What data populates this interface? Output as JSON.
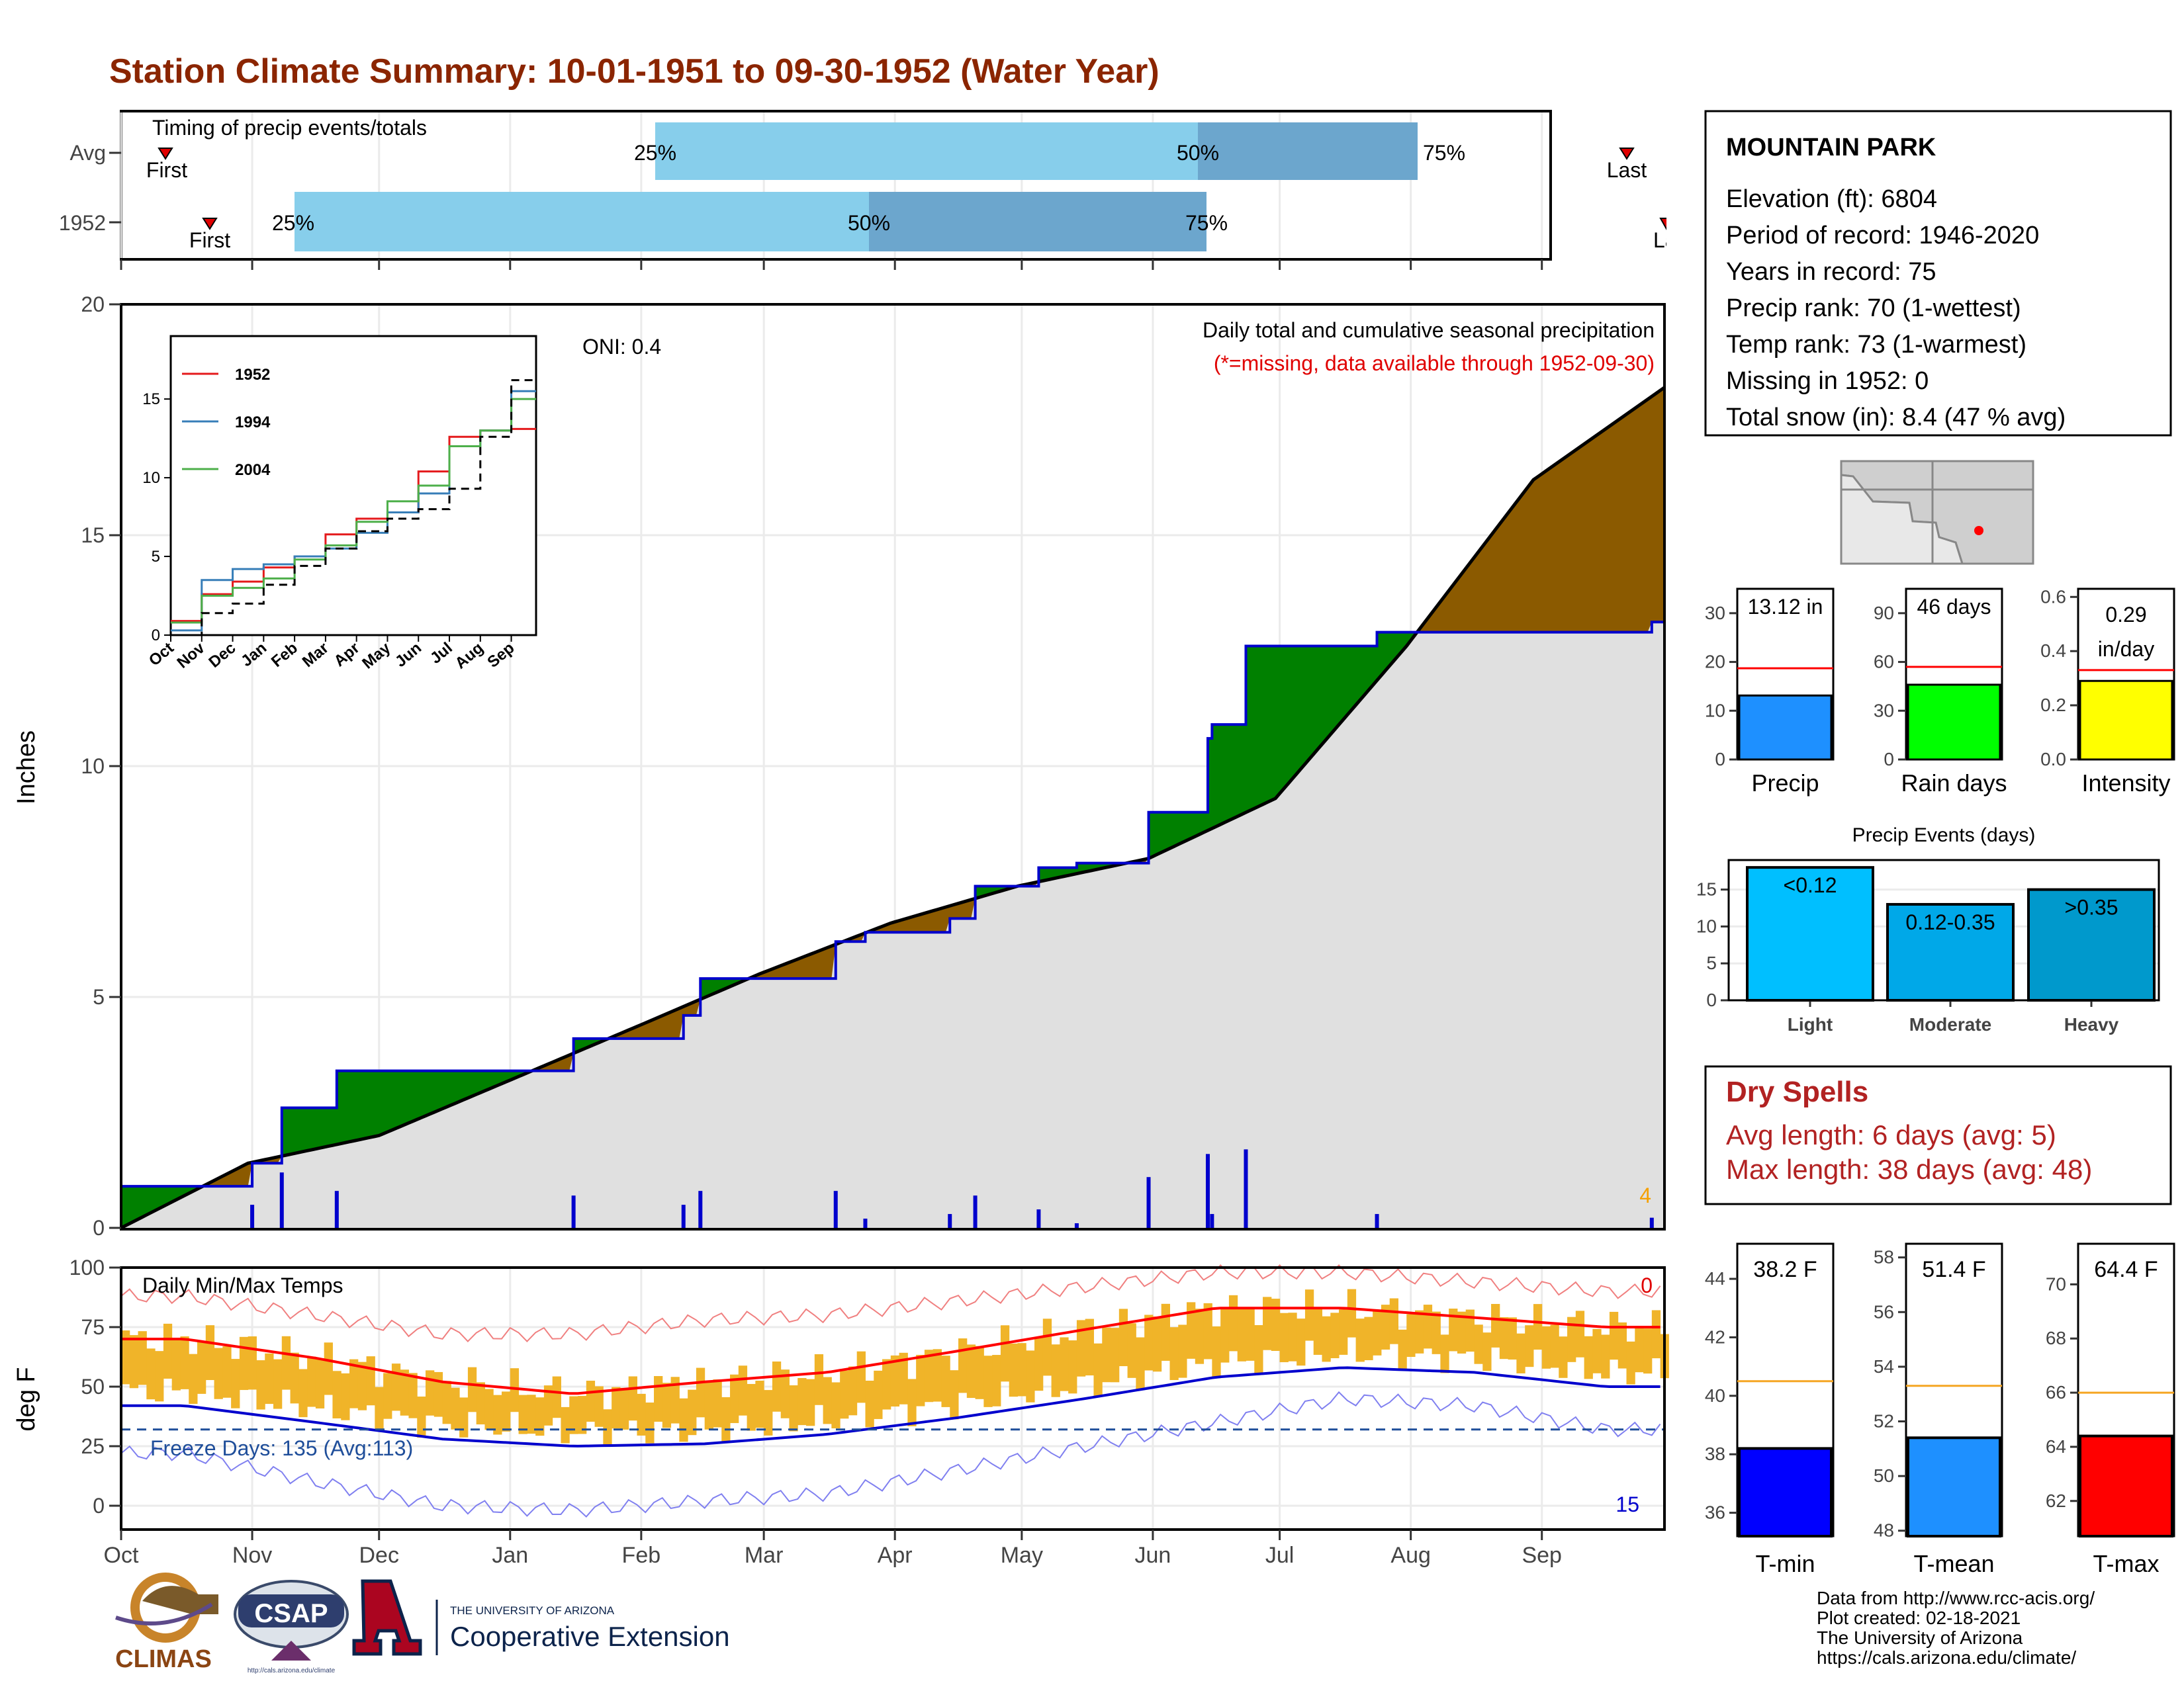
{
  "title": "Station Climate Summary: 10-01-1951 to 09-30-1952 (Water Year)",
  "colors": {
    "title": "#8B2500",
    "bar_light": "#87CEEB",
    "bar_dark": "#6CA6CD",
    "brown": "#8B5A00",
    "green": "#008000",
    "blue_line": "#0000CD",
    "gray_fill": "#E0E0E0",
    "temp_bar": "#F0B429",
    "red": "#FF0000",
    "dry_red": "#B22222"
  },
  "timing_panel": {
    "label": "Timing of precip events/totals",
    "rows": [
      {
        "name": "Avg",
        "first": "First",
        "last": "Last",
        "p25": "25%",
        "p50": "50%",
        "p75": "75%"
      },
      {
        "name": "1952",
        "first": "First",
        "last": "Last",
        "p25": "25%",
        "p50": "50%",
        "p75": "75%"
      }
    ]
  },
  "station": {
    "name": "MOUNTAIN PARK",
    "lines": [
      "Elevation (ft): 6804",
      "Period of record: 1946-2020",
      "Years in record: 75",
      "Precip rank: 70 (1-wettest)",
      "Temp rank: 73 (1-warmest)",
      "Missing in 1952: 0",
      "Total snow (in): 8.4 (47 % avg)"
    ]
  },
  "precip_panel": {
    "ylabel": "Inches",
    "yticks": [
      "0",
      "5",
      "10",
      "15",
      "20"
    ],
    "oni": "ONI: 0.4",
    "caption": "Daily total and cumulative seasonal precipitation",
    "missing_note": "(*=missing, data available through 1952-09-30)",
    "corner_count": "4"
  },
  "inset": {
    "yticks": [
      "0",
      "5",
      "10",
      "15"
    ],
    "xticks": [
      "Oct",
      "Nov",
      "Dec",
      "Jan",
      "Feb",
      "Mar",
      "Apr",
      "May",
      "Jun",
      "Jul",
      "Aug",
      "Sep"
    ],
    "legend": [
      "1952",
      "1994",
      "2004"
    ]
  },
  "months": [
    "Oct",
    "Nov",
    "Dec",
    "Jan",
    "Feb",
    "Mar",
    "Apr",
    "May",
    "Jun",
    "Jul",
    "Aug",
    "Sep"
  ],
  "temp_panel": {
    "ylabel": "deg F",
    "label": "Daily Min/Max Temps",
    "yticks": [
      "0",
      "25",
      "50",
      "75",
      "100"
    ],
    "freeze": "Freeze Days: 135 (Avg:113)",
    "count_top": "0",
    "count_bottom": "15"
  },
  "summary_bars": {
    "precip": {
      "label": "Precip",
      "value_text": "13.12 in",
      "yticks": [
        "0",
        "10",
        "20",
        "30"
      ]
    },
    "rain_days": {
      "label": "Rain days",
      "value_text": "46 days",
      "yticks": [
        "0",
        "30",
        "60",
        "90"
      ]
    },
    "intensity": {
      "label": "Intensity",
      "value_text_1": "0.29",
      "value_text_2": "in/day",
      "yticks": [
        "0.0",
        "0.2",
        "0.4",
        "0.6"
      ]
    }
  },
  "events": {
    "title": "Precip Events (days)",
    "yticks": [
      "0",
      "5",
      "10",
      "15"
    ],
    "bars": [
      {
        "label": "Light",
        "text": "<0.12"
      },
      {
        "label": "Moderate",
        "text": "0.12-0.35"
      },
      {
        "label": "Heavy",
        "text": ">0.35"
      }
    ]
  },
  "dry_spells": {
    "title": "Dry Spells",
    "line1": "Avg length: 6 days (avg: 5)",
    "line2": "Max length: 38 days (avg: 48)"
  },
  "temp_bars": {
    "tmin": {
      "label": "T-min",
      "value_text": "38.2 F",
      "yticks": [
        "36",
        "38",
        "40",
        "42",
        "44"
      ]
    },
    "tmean": {
      "label": "T-mean",
      "value_text": "51.4 F",
      "yticks": [
        "48",
        "50",
        "52",
        "54",
        "56",
        "58"
      ]
    },
    "tmax": {
      "label": "T-max",
      "value_text": "64.4 F",
      "yticks": [
        "62",
        "64",
        "66",
        "68",
        "70"
      ]
    }
  },
  "footer": {
    "lines": [
      "Data from http://www.rcc-acis.org/",
      "Plot created: 02-18-2021",
      "The University of Arizona",
      "https://cals.arizona.edu/climate/"
    ],
    "climas": "CLIMAS",
    "csap": "CSAP",
    "csap_url": "http://cals.arizona.edu/climate",
    "ua_small": "THE UNIVERSITY OF ARIZONA",
    "ua_big": "Cooperative Extension"
  },
  "chart_data": [
    {
      "type": "area",
      "id": "cumulative_precip",
      "xlabel": "",
      "ylabel": "Inches",
      "ylim": [
        0,
        20
      ],
      "x_range": [
        "1951-10-01",
        "1952-09-30"
      ],
      "series": [
        {
          "name": "1952",
          "x_day": [
            0,
            31,
            38,
            51,
            86,
            107,
            133,
            137,
            169,
            176,
            196,
            202,
            217,
            222,
            226,
            243,
            244,
            257,
            258,
            266,
            297,
            362,
            365
          ],
          "values": [
            0.9,
            1.4,
            2.6,
            3.4,
            3.4,
            4.1,
            4.6,
            5.4,
            6.2,
            6.4,
            6.7,
            7.4,
            7.8,
            7.8,
            7.9,
            9.0,
            9.0,
            10.6,
            10.9,
            12.6,
            12.9,
            13.12,
            13.12
          ]
        },
        {
          "name": "Average",
          "x_day": [
            0,
            30,
            61,
            92,
            123,
            151,
            182,
            212,
            243,
            273,
            304,
            334,
            365
          ],
          "values": [
            0.0,
            1.4,
            2.0,
            3.2,
            4.4,
            5.5,
            6.6,
            7.4,
            8.0,
            9.3,
            12.6,
            16.2,
            18.2
          ]
        }
      ]
    },
    {
      "type": "line",
      "id": "inset_cumulative",
      "ylim": [
        0,
        19
      ],
      "categories": [
        "Oct",
        "Nov",
        "Dec",
        "Jan",
        "Feb",
        "Mar",
        "Apr",
        "May",
        "Jun",
        "Jul",
        "Aug",
        "Sep"
      ],
      "series": [
        {
          "name": "1952",
          "values": [
            0.9,
            2.6,
            3.4,
            4.3,
            5.0,
            6.4,
            7.4,
            7.8,
            10.4,
            12.6,
            13.0,
            13.1
          ]
        },
        {
          "name": "1994",
          "values": [
            0.3,
            3.5,
            4.2,
            4.5,
            5.0,
            5.5,
            6.5,
            7.8,
            9.0,
            12.0,
            13.0,
            15.5
          ]
        },
        {
          "name": "2004",
          "values": [
            0.8,
            2.5,
            3.0,
            3.6,
            4.8,
            5.7,
            7.2,
            8.5,
            9.5,
            12.0,
            13.0,
            15.0
          ]
        },
        {
          "name": "Average",
          "values": [
            0.0,
            1.4,
            2.0,
            3.2,
            4.4,
            5.5,
            6.6,
            7.4,
            8.0,
            9.3,
            12.6,
            16.2
          ]
        }
      ]
    },
    {
      "type": "line",
      "id": "daily_temps",
      "ylabel": "deg F",
      "ylim": [
        -10,
        100
      ],
      "categories": [
        "Oct",
        "Nov",
        "Dec",
        "Jan",
        "Feb",
        "Mar",
        "Apr",
        "May",
        "Jun",
        "Jul",
        "Aug",
        "Sep"
      ],
      "series": [
        {
          "name": "Avg max",
          "values": [
            70,
            62,
            52,
            47,
            52,
            56,
            65,
            74,
            83,
            83,
            79,
            75
          ]
        },
        {
          "name": "Avg min",
          "values": [
            42,
            35,
            28,
            25,
            26,
            30,
            37,
            45,
            54,
            58,
            56,
            50
          ]
        },
        {
          "name": "Record high",
          "values": [
            88,
            80,
            72,
            72,
            78,
            80,
            86,
            92,
            98,
            98,
            94,
            90
          ]
        },
        {
          "name": "Record low",
          "values": [
            22,
            10,
            0,
            -2,
            2,
            5,
            15,
            25,
            35,
            45,
            42,
            32
          ]
        }
      ]
    },
    {
      "type": "bar",
      "id": "precip_summary",
      "categories": [
        "Precip",
        "Rain days",
        "Intensity"
      ],
      "values": [
        13.12,
        46,
        0.29
      ],
      "averages": [
        18.7,
        57,
        0.33
      ],
      "ylims": [
        [
          0,
          35
        ],
        [
          0,
          105
        ],
        [
          0,
          0.63
        ]
      ]
    },
    {
      "type": "bar",
      "id": "precip_events",
      "title": "Precip Events (days)",
      "categories": [
        "Light",
        "Moderate",
        "Heavy"
      ],
      "values": [
        18,
        13,
        15
      ],
      "ylim": [
        0,
        19
      ]
    },
    {
      "type": "bar",
      "id": "temp_summary",
      "categories": [
        "T-min",
        "T-mean",
        "T-max"
      ],
      "values": [
        38.2,
        51.4,
        64.4
      ],
      "averages": [
        40.5,
        53.3,
        66.0
      ],
      "ylims": [
        [
          35.2,
          45.2
        ],
        [
          47.8,
          58.5
        ],
        [
          60.7,
          71.5
        ]
      ]
    }
  ]
}
